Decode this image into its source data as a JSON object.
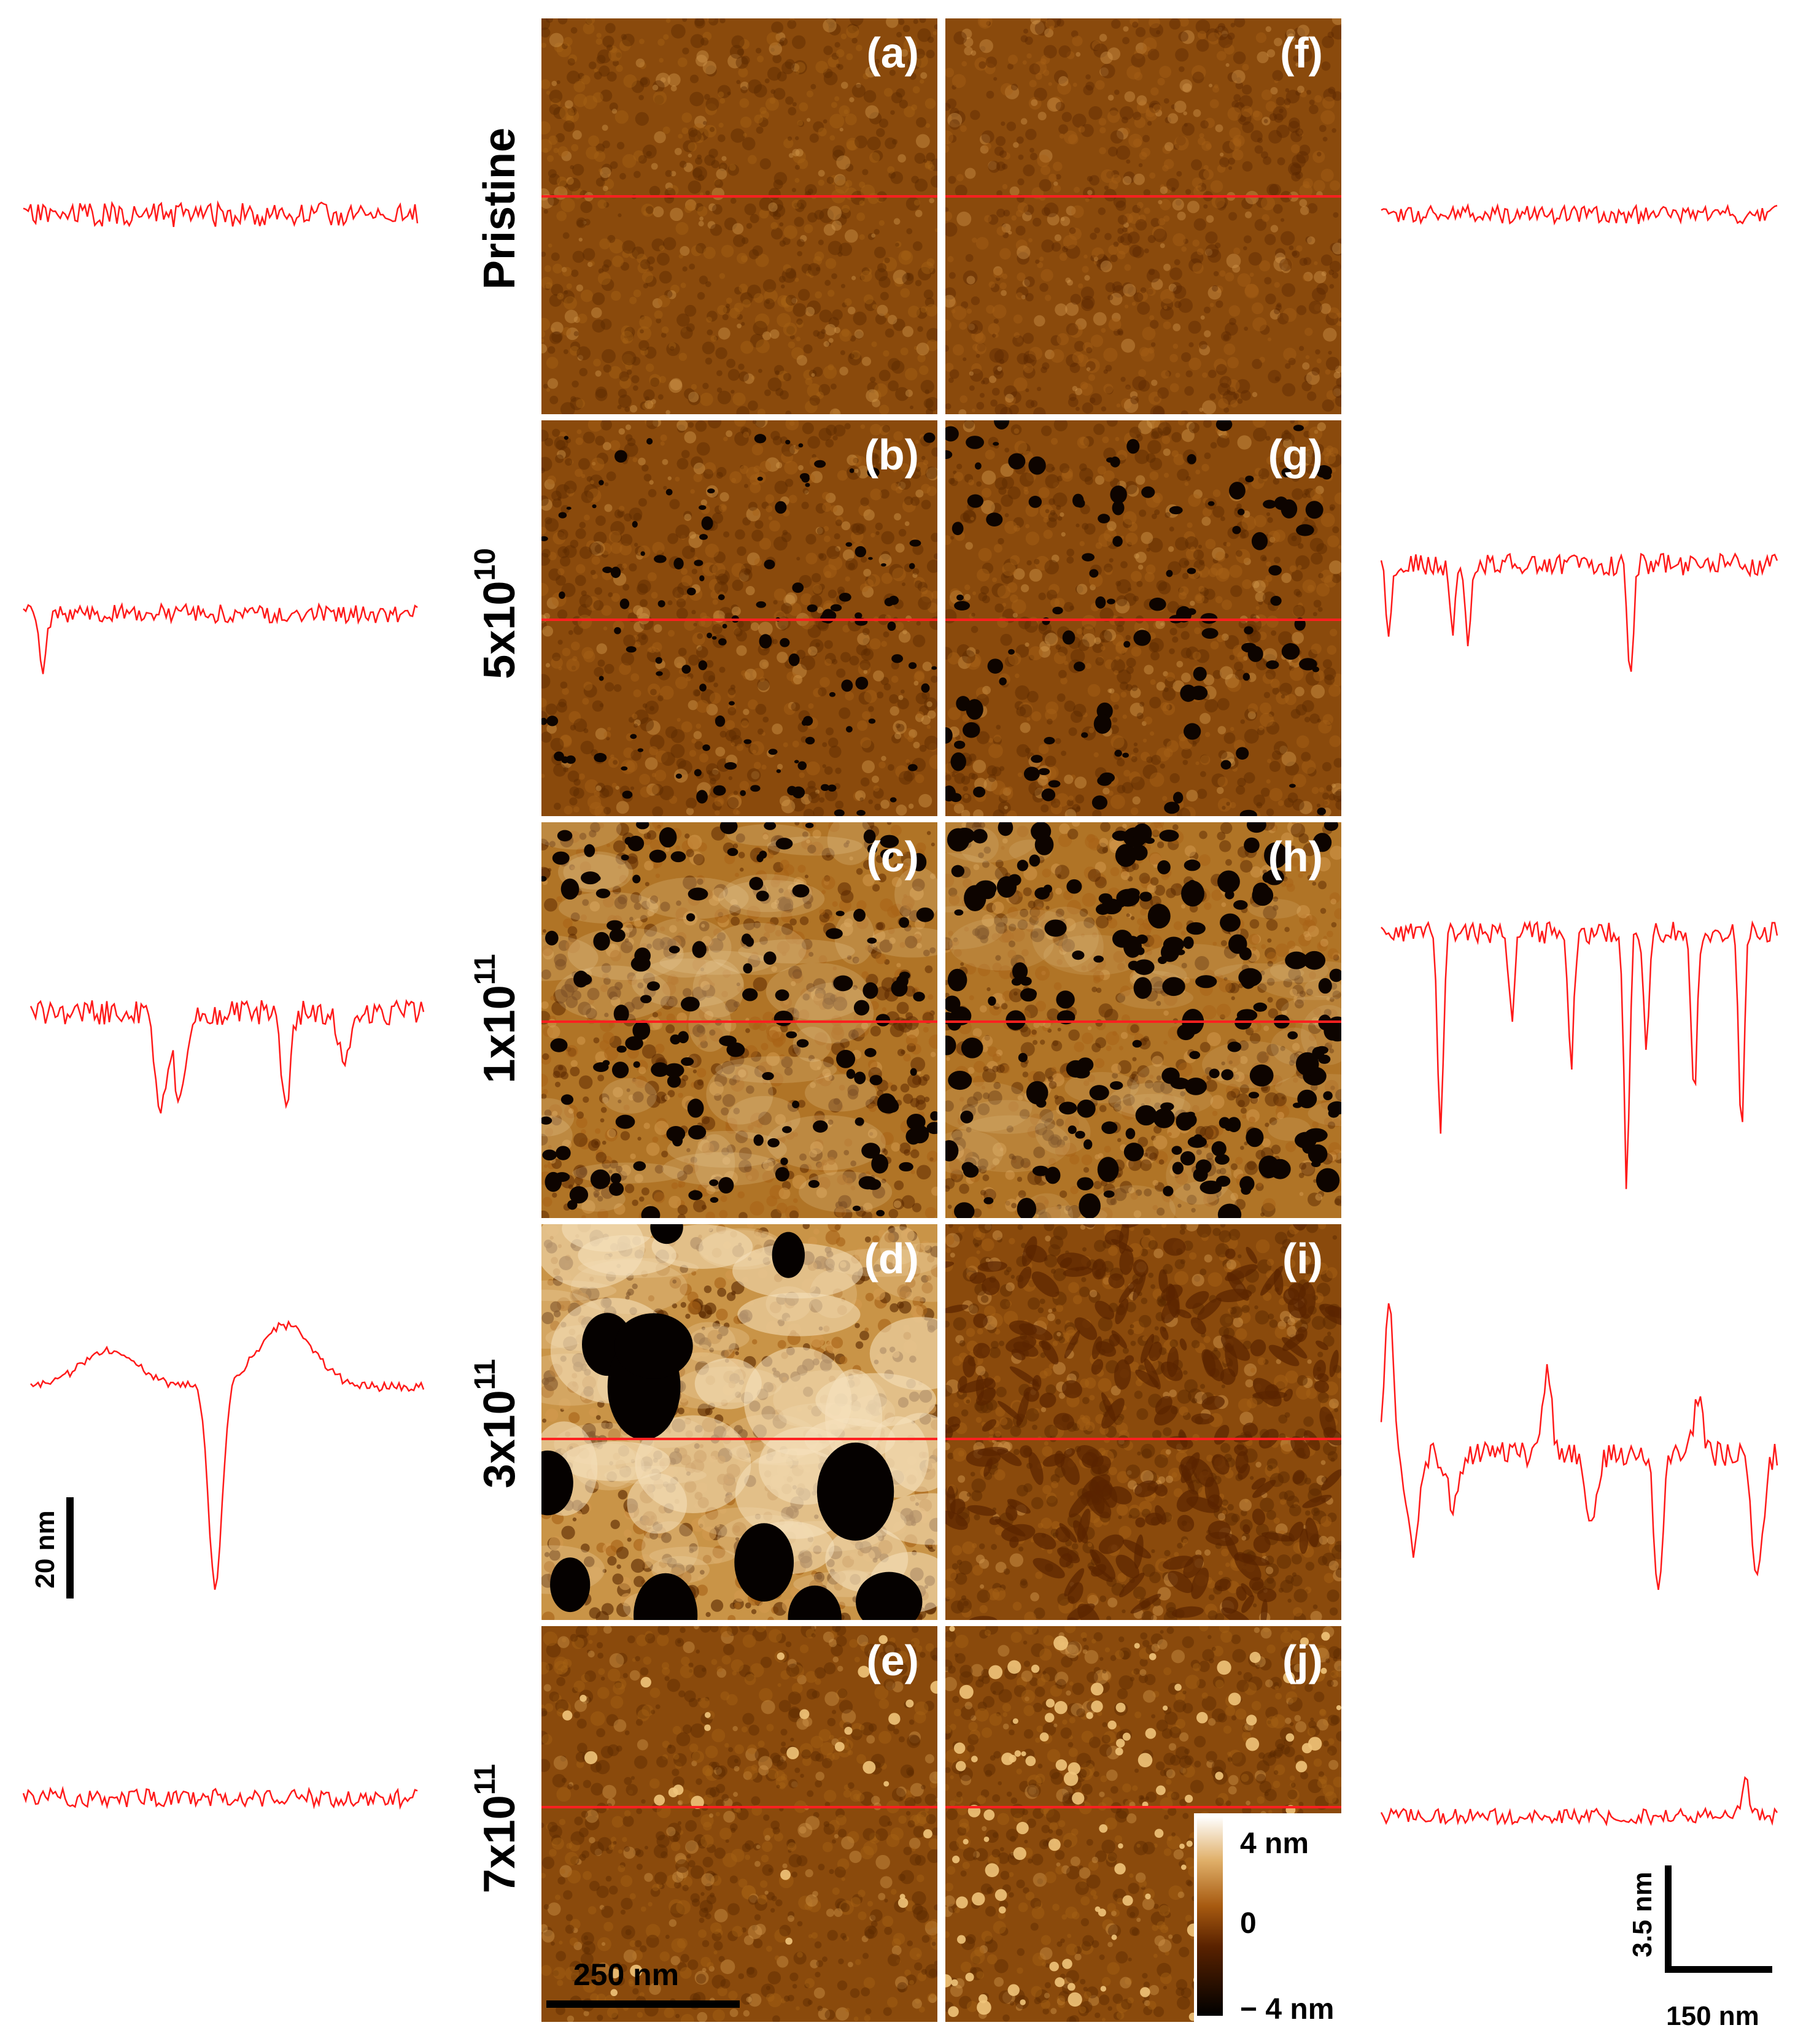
{
  "panels": [
    {
      "label": "(a)",
      "dose": "Pristine",
      "roughness": 0.25,
      "pits": 0,
      "pit_size": 0,
      "bright": 0.05,
      "style": "fine"
    },
    {
      "label": "(b)",
      "dose": "5x10",
      "dose_exp": "10",
      "roughness": 0.3,
      "pits": 120,
      "pit_size": 7,
      "bright": 0.1,
      "style": "pits"
    },
    {
      "label": "(c)",
      "dose": "1x10",
      "dose_exp": "11",
      "roughness": 0.6,
      "pits": 140,
      "pit_size": 11,
      "bright": 0.6,
      "style": "pits"
    },
    {
      "label": "(d)",
      "dose": "3x10",
      "dose_exp": "11",
      "roughness": 0.9,
      "pits": 14,
      "pit_size": 45,
      "bright": 0.8,
      "style": "blobs"
    },
    {
      "label": "(e)",
      "dose": "7x10",
      "dose_exp": "11",
      "roughness": 0.25,
      "pits": 0,
      "pit_size": 0,
      "bright": 0.1,
      "style": "dots"
    },
    {
      "label": "(f)",
      "dose": "Pristine",
      "roughness": 0.2,
      "pits": 0,
      "pit_size": 0,
      "bright": 0.05,
      "style": "fine"
    },
    {
      "label": "(g)",
      "dose": "5x10",
      "dose_exp": "10",
      "roughness": 0.3,
      "pits": 110,
      "pit_size": 10,
      "bright": 0.1,
      "style": "pits"
    },
    {
      "label": "(h)",
      "dose": "1x10",
      "dose_exp": "11",
      "roughness": 0.5,
      "pits": 190,
      "pit_size": 13,
      "bright": 0.4,
      "style": "pits"
    },
    {
      "label": "(i)",
      "dose": "3x10",
      "dose_exp": "11",
      "roughness": 0.4,
      "pits": 0,
      "pit_size": 0,
      "bright": 0.2,
      "style": "worms"
    },
    {
      "label": "(j)",
      "dose": "7x10",
      "dose_exp": "11",
      "roughness": 0.25,
      "pits": 0,
      "pit_size": 0,
      "bright": 0.1,
      "style": "bright-dots"
    }
  ],
  "dose_labels": [
    {
      "base": "Pristine",
      "exp": ""
    },
    {
      "base": "5x10",
      "exp": "10"
    },
    {
      "base": "1x10",
      "exp": "11"
    },
    {
      "base": "3x10",
      "exp": "11"
    },
    {
      "base": "7x10",
      "exp": "11"
    }
  ],
  "left_scale": {
    "label": "20 nm"
  },
  "right_scale": {
    "vertical_label": "3.5 nm",
    "horizontal_label": "150 nm"
  },
  "image_scale_bar": {
    "label": "250 nm"
  },
  "colorbar": {
    "max_label": "4 nm",
    "mid_label": "0",
    "min_label": "− 4 nm"
  },
  "colors": {
    "profile_line": "#ff1a1a",
    "scan_line": "#ff2020",
    "afm_low": "#000000",
    "afm_mid": "#7a3a05",
    "afm_high": "#ffffff"
  }
}
